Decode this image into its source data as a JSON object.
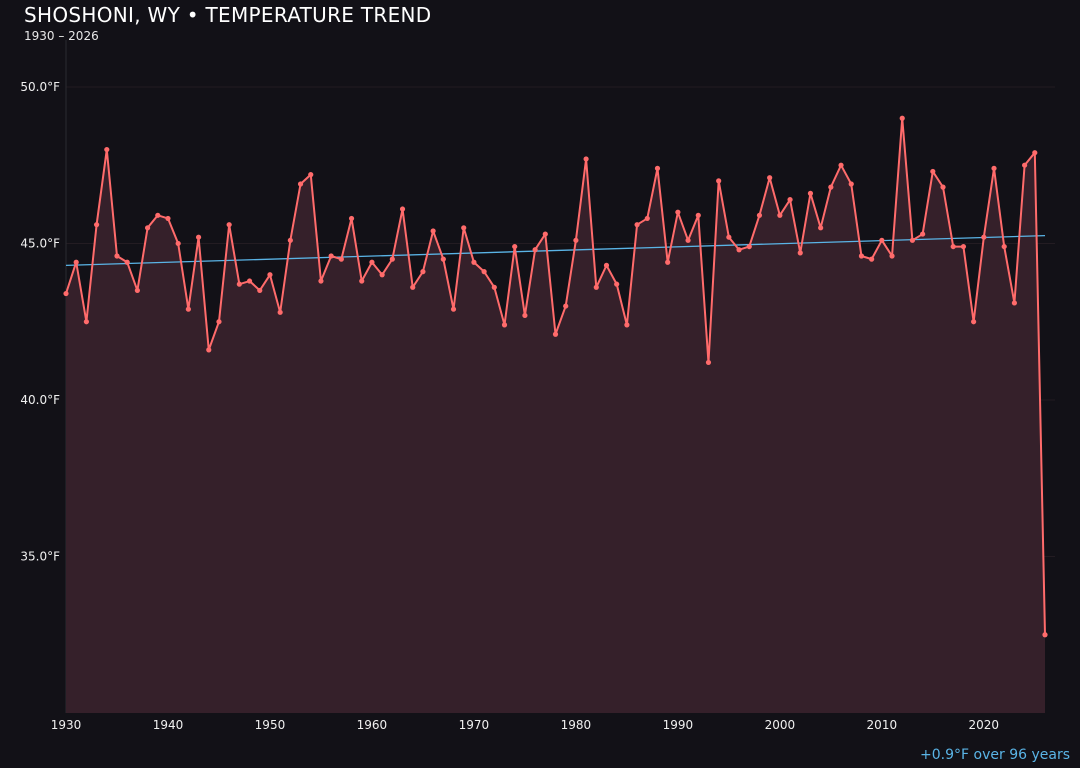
{
  "chart_data": {
    "type": "line",
    "title": "SHOSHONI, WY • TEMPERATURE TREND",
    "subtitle": "1930 – 2026",
    "xlabel": "",
    "ylabel": "",
    "xlim": [
      1930,
      2027
    ],
    "ylim": [
      30,
      51.5
    ],
    "grid": true,
    "x_ticks": [
      1930,
      1940,
      1950,
      1960,
      1970,
      1980,
      1990,
      2000,
      2010,
      2020
    ],
    "y_ticks": [
      35,
      40,
      45,
      50
    ],
    "y_tick_labels": [
      "35.0°F",
      "40.0°F",
      "45.0°F",
      "50.0°F"
    ],
    "x": [
      1930,
      1931,
      1932,
      1933,
      1934,
      1935,
      1936,
      1937,
      1938,
      1939,
      1940,
      1941,
      1942,
      1943,
      1944,
      1945,
      1946,
      1947,
      1948,
      1949,
      1950,
      1951,
      1952,
      1953,
      1954,
      1955,
      1956,
      1957,
      1958,
      1959,
      1960,
      1961,
      1962,
      1963,
      1964,
      1965,
      1966,
      1967,
      1968,
      1969,
      1970,
      1971,
      1972,
      1973,
      1974,
      1975,
      1976,
      1977,
      1978,
      1979,
      1980,
      1981,
      1982,
      1983,
      1984,
      1985,
      1986,
      1987,
      1988,
      1989,
      1990,
      1991,
      1992,
      1993,
      1994,
      1995,
      1996,
      1997,
      1998,
      1999,
      2000,
      2001,
      2002,
      2003,
      2004,
      2005,
      2006,
      2007,
      2008,
      2009,
      2010,
      2011,
      2012,
      2013,
      2014,
      2015,
      2016,
      2017,
      2018,
      2019,
      2020,
      2021,
      2022,
      2023,
      2024,
      2025,
      2026
    ],
    "series": [
      {
        "values": [
          43.4,
          44.4,
          42.5,
          45.6,
          48.0,
          44.6,
          44.4,
          43.5,
          45.5,
          45.9,
          45.8,
          45.0,
          42.9,
          45.2,
          41.6,
          42.5,
          45.6,
          43.7,
          43.8,
          43.5,
          44.0,
          42.8,
          45.1,
          46.9,
          47.2,
          43.8,
          44.6,
          44.5,
          45.8,
          43.8,
          44.4,
          44.0,
          44.5,
          46.1,
          43.6,
          44.1,
          45.4,
          44.5,
          42.9,
          45.5,
          44.4,
          44.1,
          43.6,
          42.4,
          44.9,
          42.7,
          44.8,
          45.3,
          42.1,
          43.0,
          45.1,
          47.7,
          43.6,
          44.3,
          43.7,
          42.4,
          45.6,
          45.8,
          47.4,
          44.4,
          46.0,
          45.1,
          45.9,
          41.2,
          47.0,
          45.2,
          44.8,
          44.9,
          45.9,
          47.1,
          45.9,
          46.4,
          44.7,
          46.6,
          45.5,
          46.8,
          47.5,
          46.9,
          44.6,
          44.5,
          45.1,
          44.6,
          49.0,
          45.1,
          45.3,
          47.3,
          46.8,
          44.9,
          44.9,
          42.5,
          45.2,
          47.4,
          44.9,
          43.1,
          47.5,
          47.9,
          32.5
        ]
      }
    ],
    "trend": {
      "start": [
        1930,
        44.3
      ],
      "end": [
        2026,
        45.25
      ]
    },
    "annotation": "+0.9°F over 96 years",
    "colors": {
      "background": "#121117",
      "line": "#ff6b6b",
      "fill": "#35202a",
      "trend": "#5ab4e6",
      "annotation": "#5ab4e6"
    }
  }
}
